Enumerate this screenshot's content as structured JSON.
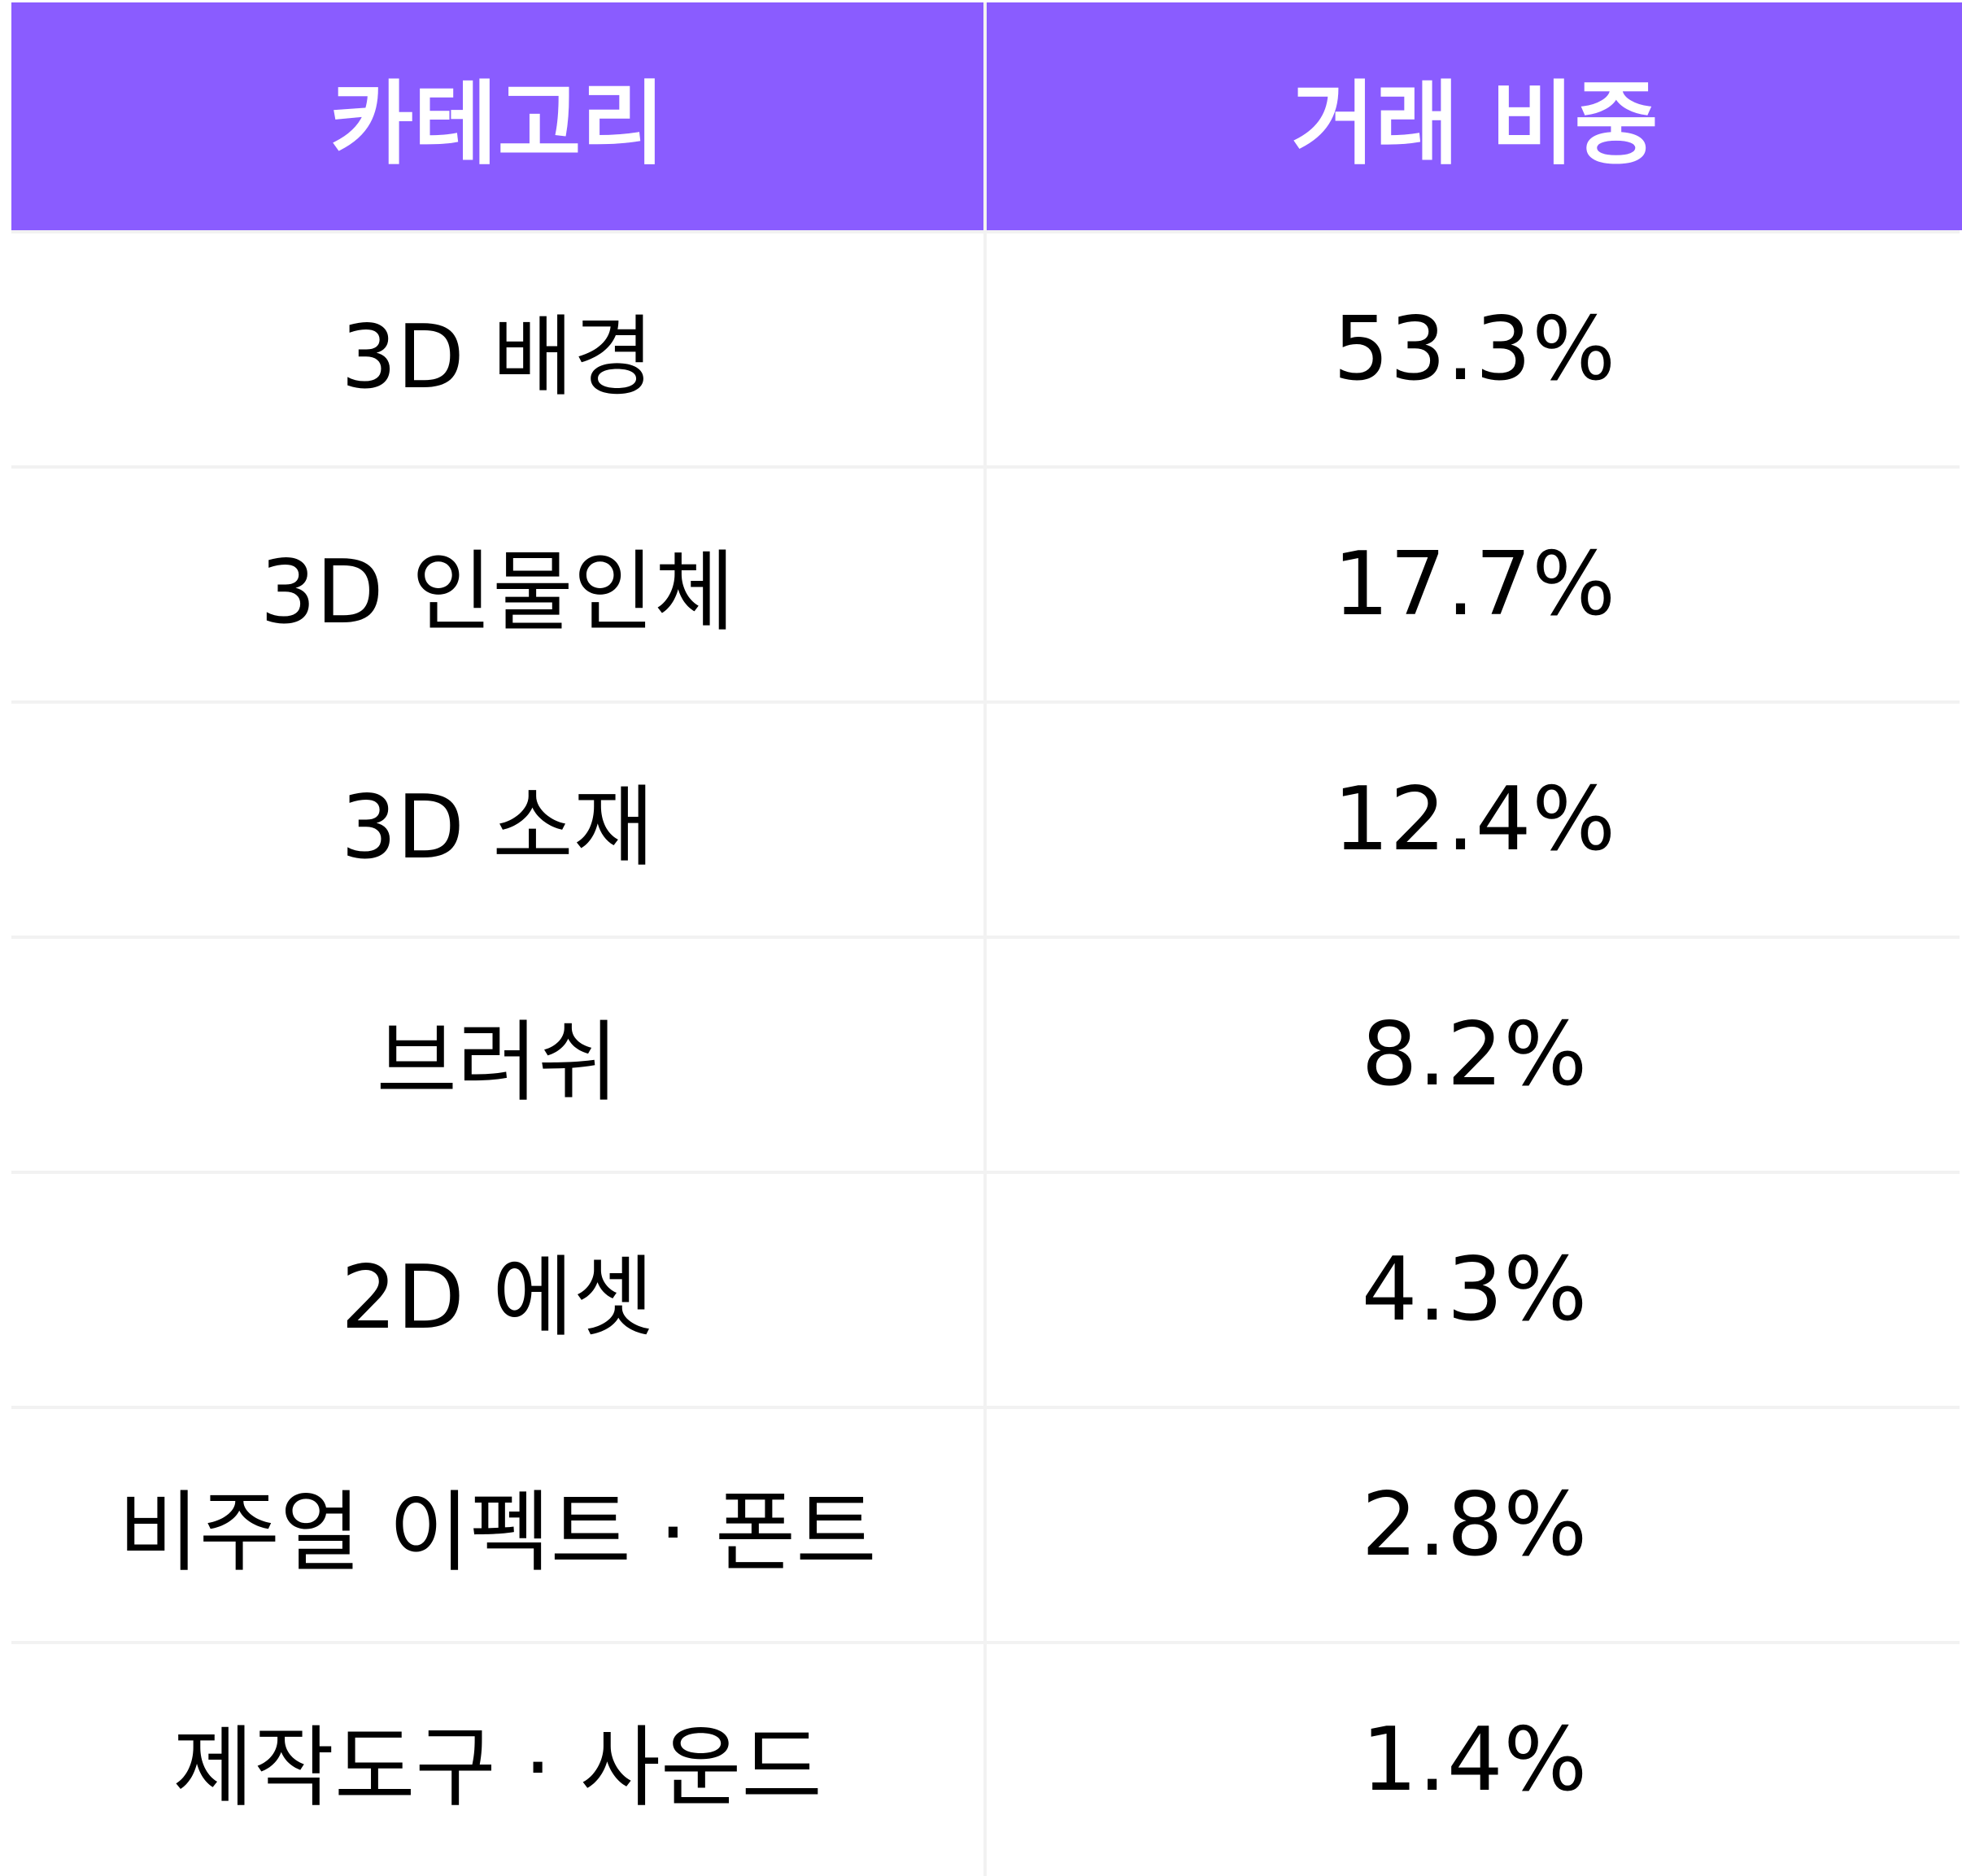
{
  "chart_data": {
    "type": "table",
    "columns": [
      "카테고리",
      "거래 비중"
    ],
    "rows": [
      {
        "category": "3D 배경",
        "share": "53.3%"
      },
      {
        "category": "3D 인물인체",
        "share": "17.7%"
      },
      {
        "category": "3D 소재",
        "share": "12.4%"
      },
      {
        "category": "브러쉬",
        "share": "8.2%"
      },
      {
        "category": "2D 에셋",
        "share": "4.3%"
      },
      {
        "category": "비주얼 이펙트 · 폰트",
        "share": "2.8%"
      },
      {
        "category": "제작도구 · 사운드",
        "share": "1.4%"
      }
    ],
    "header_color": "#8a5cff",
    "header_text_color": "#ffffff"
  }
}
